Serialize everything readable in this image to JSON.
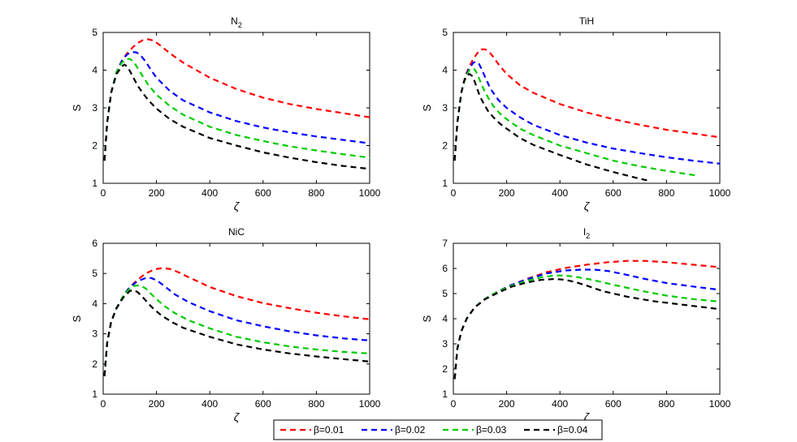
{
  "figure": {
    "legend_entries": [
      "β=0.01",
      "β=0.02",
      "β=0.03",
      "β=0.04"
    ],
    "colors": [
      "#ff0000",
      "#0000ff",
      "#00cc00",
      "#000000"
    ],
    "legend_position": "bottom-center"
  },
  "chart_data": [
    {
      "type": "line",
      "title": "N",
      "title_sub": "2",
      "xlabel": "ζ",
      "ylabel": "S",
      "xlim": [
        0,
        1000
      ],
      "ylim": [
        1,
        5
      ],
      "xticks": [
        0,
        200,
        400,
        600,
        800,
        1000
      ],
      "yticks": [
        1,
        2,
        3,
        4,
        5
      ],
      "grid": false,
      "series": [
        {
          "name": "β=0.01",
          "x": [
            5,
            15,
            30,
            50,
            70,
            90,
            110,
            130,
            150,
            170,
            190,
            210,
            250,
            300,
            400,
            500,
            600,
            700,
            800,
            900,
            1000
          ],
          "y": [
            1.6,
            2.6,
            3.4,
            3.95,
            4.25,
            4.45,
            4.6,
            4.72,
            4.8,
            4.82,
            4.78,
            4.68,
            4.45,
            4.2,
            3.8,
            3.5,
            3.27,
            3.1,
            2.97,
            2.86,
            2.75
          ]
        },
        {
          "name": "β=0.02",
          "x": [
            5,
            15,
            30,
            50,
            70,
            90,
            110,
            125,
            140,
            160,
            180,
            200,
            250,
            300,
            400,
            500,
            600,
            700,
            800,
            900,
            1000
          ],
          "y": [
            1.6,
            2.6,
            3.4,
            3.95,
            4.25,
            4.42,
            4.48,
            4.47,
            4.4,
            4.22,
            4.0,
            3.8,
            3.45,
            3.2,
            2.88,
            2.65,
            2.48,
            2.35,
            2.24,
            2.15,
            2.06
          ]
        },
        {
          "name": "β=0.03",
          "x": [
            5,
            15,
            30,
            50,
            70,
            90,
            100,
            115,
            130,
            150,
            170,
            200,
            250,
            300,
            400,
            500,
            600,
            700,
            800,
            900,
            1000
          ],
          "y": [
            1.6,
            2.6,
            3.4,
            3.95,
            4.2,
            4.3,
            4.3,
            4.22,
            4.05,
            3.82,
            3.6,
            3.35,
            3.05,
            2.82,
            2.5,
            2.28,
            2.12,
            1.98,
            1.87,
            1.77,
            1.68
          ]
        },
        {
          "name": "β=0.04",
          "x": [
            5,
            15,
            30,
            50,
            70,
            80,
            90,
            100,
            115,
            130,
            150,
            170,
            200,
            250,
            300,
            400,
            500,
            600,
            700,
            800,
            900,
            1000
          ],
          "y": [
            1.6,
            2.6,
            3.4,
            3.9,
            4.1,
            4.15,
            4.1,
            3.98,
            3.78,
            3.58,
            3.38,
            3.2,
            2.98,
            2.7,
            2.5,
            2.2,
            2.0,
            1.82,
            1.68,
            1.56,
            1.46,
            1.38
          ]
        }
      ]
    },
    {
      "type": "line",
      "title": "TiH",
      "title_sub": "",
      "xlabel": "ζ",
      "ylabel": "S",
      "xlim": [
        0,
        1000
      ],
      "ylim": [
        1,
        5
      ],
      "xticks": [
        0,
        200,
        400,
        600,
        800,
        1000
      ],
      "yticks": [
        1,
        2,
        3,
        4,
        5
      ],
      "grid": false,
      "series": [
        {
          "name": "β=0.01",
          "x": [
            5,
            15,
            30,
            45,
            60,
            75,
            90,
            105,
            120,
            135,
            150,
            170,
            200,
            250,
            300,
            400,
            500,
            600,
            700,
            800,
            900,
            1000
          ],
          "y": [
            1.6,
            2.6,
            3.4,
            3.85,
            4.1,
            4.3,
            4.45,
            4.55,
            4.55,
            4.48,
            4.35,
            4.15,
            3.9,
            3.6,
            3.4,
            3.1,
            2.88,
            2.7,
            2.55,
            2.42,
            2.32,
            2.22
          ]
        },
        {
          "name": "β=0.02",
          "x": [
            5,
            15,
            30,
            45,
            60,
            75,
            85,
            95,
            105,
            120,
            140,
            170,
            200,
            250,
            300,
            400,
            500,
            600,
            700,
            800,
            900,
            1000
          ],
          "y": [
            1.6,
            2.6,
            3.4,
            3.82,
            4.05,
            4.2,
            4.22,
            4.18,
            4.05,
            3.8,
            3.5,
            3.2,
            3.0,
            2.75,
            2.55,
            2.28,
            2.08,
            1.92,
            1.8,
            1.69,
            1.6,
            1.52
          ]
        },
        {
          "name": "β=0.03",
          "x": [
            5,
            15,
            30,
            45,
            60,
            70,
            80,
            90,
            100,
            115,
            130,
            150,
            175,
            200,
            250,
            300,
            400,
            500,
            600,
            700,
            800,
            900,
            920
          ],
          "y": [
            1.6,
            2.6,
            3.4,
            3.8,
            4.0,
            4.05,
            4.02,
            3.9,
            3.72,
            3.48,
            3.28,
            3.05,
            2.85,
            2.7,
            2.45,
            2.28,
            2.0,
            1.8,
            1.6,
            1.45,
            1.33,
            1.22,
            1.2
          ]
        },
        {
          "name": "β=0.04",
          "x": [
            5,
            15,
            30,
            40,
            50,
            60,
            70,
            80,
            90,
            100,
            115,
            130,
            150,
            175,
            200,
            250,
            300,
            400,
            500,
            600,
            700,
            740
          ],
          "y": [
            1.6,
            2.6,
            3.4,
            3.7,
            3.85,
            3.9,
            3.85,
            3.7,
            3.5,
            3.3,
            3.1,
            2.92,
            2.75,
            2.58,
            2.45,
            2.2,
            2.02,
            1.75,
            1.5,
            1.3,
            1.12,
            1.06
          ]
        }
      ]
    },
    {
      "type": "line",
      "title": "NiC",
      "title_sub": "",
      "xlabel": "ζ",
      "ylabel": "S",
      "xlim": [
        0,
        1000
      ],
      "ylim": [
        1,
        6
      ],
      "xticks": [
        0,
        200,
        400,
        600,
        800,
        1000
      ],
      "yticks": [
        1,
        2,
        3,
        4,
        5,
        6
      ],
      "grid": false,
      "series": [
        {
          "name": "β=0.01",
          "x": [
            5,
            15,
            30,
            50,
            75,
            100,
            130,
            160,
            190,
            220,
            250,
            280,
            320,
            400,
            500,
            600,
            700,
            800,
            900,
            1000
          ],
          "y": [
            1.6,
            2.7,
            3.4,
            3.85,
            4.25,
            4.55,
            4.8,
            5.0,
            5.13,
            5.18,
            5.15,
            5.05,
            4.88,
            4.55,
            4.25,
            4.02,
            3.85,
            3.7,
            3.58,
            3.48
          ]
        },
        {
          "name": "β=0.02",
          "x": [
            5,
            15,
            30,
            50,
            75,
            100,
            130,
            160,
            180,
            200,
            230,
            270,
            320,
            400,
            500,
            600,
            700,
            800,
            900,
            1000
          ],
          "y": [
            1.6,
            2.7,
            3.4,
            3.85,
            4.25,
            4.55,
            4.75,
            4.85,
            4.85,
            4.78,
            4.58,
            4.3,
            4.05,
            3.75,
            3.45,
            3.25,
            3.08,
            2.95,
            2.85,
            2.78
          ]
        },
        {
          "name": "β=0.03",
          "x": [
            5,
            15,
            30,
            50,
            75,
            100,
            120,
            140,
            160,
            180,
            200,
            230,
            270,
            320,
            400,
            500,
            600,
            700,
            800,
            900,
            1000
          ],
          "y": [
            1.6,
            2.7,
            3.4,
            3.85,
            4.25,
            4.5,
            4.6,
            4.6,
            4.5,
            4.32,
            4.15,
            3.92,
            3.68,
            3.45,
            3.18,
            2.9,
            2.72,
            2.58,
            2.48,
            2.4,
            2.35
          ]
        },
        {
          "name": "β=0.04",
          "x": [
            5,
            15,
            30,
            50,
            75,
            100,
            115,
            130,
            150,
            170,
            190,
            220,
            260,
            300,
            400,
            500,
            600,
            700,
            800,
            900,
            1000
          ],
          "y": [
            1.6,
            2.7,
            3.4,
            3.85,
            4.2,
            4.42,
            4.45,
            4.38,
            4.2,
            4.0,
            3.82,
            3.6,
            3.38,
            3.2,
            2.9,
            2.65,
            2.48,
            2.35,
            2.25,
            2.16,
            2.08
          ]
        }
      ]
    },
    {
      "type": "line",
      "title": "I",
      "title_sub": "2",
      "xlabel": "ζ",
      "ylabel": "S",
      "xlim": [
        0,
        1000
      ],
      "ylim": [
        1,
        7
      ],
      "xticks": [
        0,
        200,
        400,
        600,
        800,
        1000
      ],
      "yticks": [
        1,
        2,
        3,
        4,
        5,
        6,
        7
      ],
      "grid": false,
      "series": [
        {
          "name": "β=0.01",
          "x": [
            5,
            15,
            30,
            50,
            80,
            120,
            170,
            220,
            280,
            350,
            420,
            500,
            580,
            650,
            720,
            800,
            900,
            1000
          ],
          "y": [
            1.6,
            2.8,
            3.5,
            4.0,
            4.45,
            4.8,
            5.1,
            5.35,
            5.6,
            5.85,
            6.02,
            6.15,
            6.25,
            6.3,
            6.3,
            6.25,
            6.15,
            6.05
          ]
        },
        {
          "name": "β=0.02",
          "x": [
            5,
            15,
            30,
            50,
            80,
            120,
            170,
            220,
            280,
            350,
            420,
            480,
            530,
            580,
            650,
            720,
            800,
            900,
            1000
          ],
          "y": [
            1.6,
            2.8,
            3.5,
            4.0,
            4.45,
            4.8,
            5.1,
            5.35,
            5.58,
            5.8,
            5.92,
            5.95,
            5.95,
            5.9,
            5.75,
            5.58,
            5.42,
            5.28,
            5.15
          ]
        },
        {
          "name": "β=0.03",
          "x": [
            5,
            15,
            30,
            50,
            80,
            120,
            170,
            220,
            280,
            330,
            380,
            420,
            470,
            520,
            600,
            700,
            800,
            900,
            1000
          ],
          "y": [
            1.6,
            2.8,
            3.5,
            4.0,
            4.45,
            4.8,
            5.1,
            5.32,
            5.52,
            5.65,
            5.72,
            5.72,
            5.65,
            5.55,
            5.35,
            5.12,
            4.92,
            4.78,
            4.68
          ]
        },
        {
          "name": "β=0.04",
          "x": [
            5,
            15,
            30,
            50,
            80,
            120,
            170,
            220,
            280,
            330,
            380,
            420,
            460,
            500,
            560,
            650,
            750,
            850,
            1000
          ],
          "y": [
            1.6,
            2.8,
            3.5,
            4.0,
            4.45,
            4.78,
            5.05,
            5.28,
            5.45,
            5.55,
            5.58,
            5.55,
            5.45,
            5.32,
            5.1,
            4.88,
            4.7,
            4.57,
            4.38
          ]
        }
      ]
    }
  ]
}
